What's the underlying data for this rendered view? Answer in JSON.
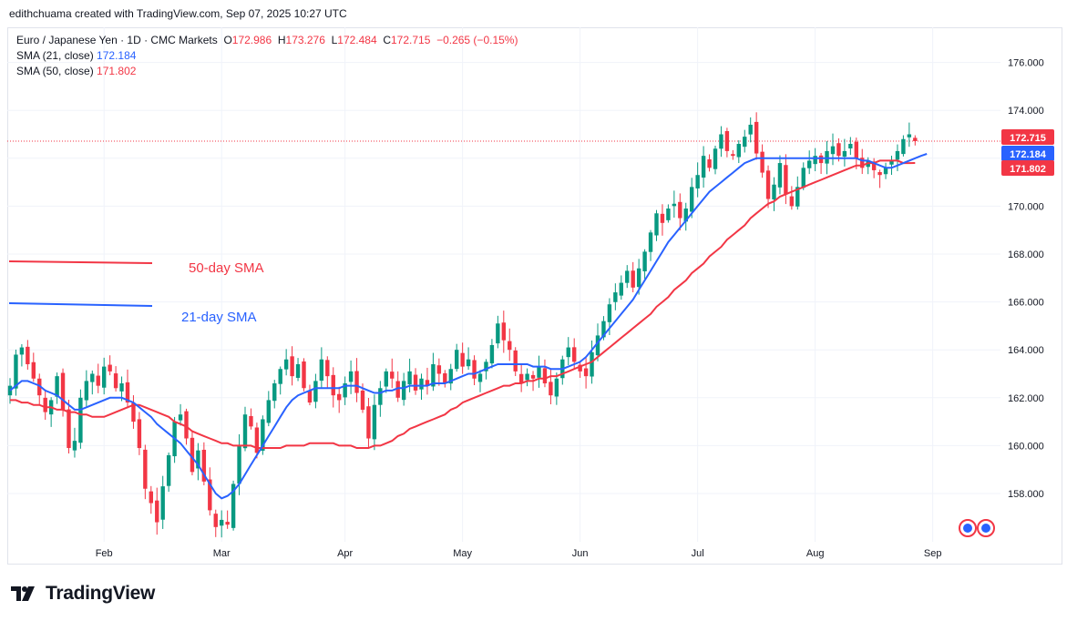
{
  "credit": "edithchuama created with TradingView.com, Sep 07, 2025 10:27 UTC",
  "legend": {
    "symbol": "Euro / Japanese Yen · 1D · CMC Markets",
    "o_label": "O",
    "o": "172.986",
    "h_label": "H",
    "h": "173.276",
    "l_label": "L",
    "l": "172.484",
    "c_label": "C",
    "c": "172.715",
    "change": "−0.265 (−0.15%)",
    "sma21_label": "SMA (21, close)",
    "sma21_value": "172.184",
    "sma50_label": "SMA (50, close)",
    "sma50_value": "171.802"
  },
  "annotations": {
    "sma50": "50-day SMA",
    "sma21": "21-day SMA"
  },
  "brand": {
    "name": "TradingView"
  },
  "colors": {
    "up": "#089981",
    "down": "#f23645",
    "sma21": "#2962ff",
    "sma50": "#f23645",
    "text": "#131722",
    "grid": "#f0f3fa"
  },
  "chart_data": {
    "type": "candlestick",
    "price_ticks": [
      "158.000",
      "160.000",
      "162.000",
      "164.000",
      "166.000",
      "168.000",
      "170.000",
      "172.000",
      "174.000",
      "176.000"
    ],
    "ylim": [
      156,
      177.5
    ],
    "months": [
      {
        "label": "Feb",
        "day": 16
      },
      {
        "label": "Mar",
        "day": 36
      },
      {
        "label": "Apr",
        "day": 57
      },
      {
        "label": "May",
        "day": 77
      },
      {
        "label": "Jun",
        "day": 97
      },
      {
        "label": "Jul",
        "day": 117
      },
      {
        "label": "Aug",
        "day": 137
      },
      {
        "label": "Sep",
        "day": 157
      }
    ],
    "last_price": 172.715,
    "sma21_last": 172.184,
    "sma50_last": 171.802,
    "closes": [
      162.5,
      163.8,
      164.1,
      163.4,
      162.8,
      162.1,
      161.4,
      161.9,
      162.9,
      161.5,
      159.9,
      160.2,
      162.0,
      162.7,
      163.0,
      162.5,
      163.3,
      163.1,
      162.4,
      162.6,
      161.8,
      161.0,
      159.9,
      158.2,
      157.6,
      156.8,
      158.3,
      159.6,
      161.0,
      161.3,
      160.3,
      158.9,
      159.8,
      158.5,
      157.3,
      156.6,
      156.9,
      156.7,
      158.4,
      160.0,
      161.3,
      160.8,
      159.7,
      161.1,
      161.9,
      162.6,
      163.2,
      163.6,
      162.9,
      163.4,
      162.4,
      161.8,
      162.7,
      163.6,
      162.9,
      162.1,
      161.9,
      162.6,
      163.1,
      162.2,
      161.5,
      160.3,
      161.7,
      162.4,
      163.1,
      162.8,
      162.0,
      162.7,
      163.1,
      162.3,
      162.8,
      162.5,
      163.4,
      163.0,
      162.6,
      163.2,
      164.0,
      163.3,
      163.6,
      162.8,
      163.0,
      163.5,
      164.2,
      165.1,
      164.4,
      164.0,
      163.1,
      162.6,
      163.0,
      162.8,
      163.3,
      162.6,
      162.1,
      162.8,
      163.6,
      164.1,
      163.5,
      163.1,
      162.9,
      163.9,
      164.6,
      165.2,
      165.9,
      166.4,
      166.8,
      167.3,
      166.6,
      167.4,
      168.1,
      168.9,
      169.7,
      169.3,
      169.9,
      170.1,
      169.5,
      169.9,
      170.8,
      171.3,
      172.1,
      171.6,
      172.4,
      173.0,
      172.3,
      172.1,
      172.6,
      172.9,
      173.4,
      172.2,
      171.4,
      170.3,
      170.9,
      171.8,
      170.5,
      170.0,
      170.8,
      171.6,
      171.9,
      172.1,
      171.8,
      172.3,
      172.5,
      172.1,
      172.3,
      172.6,
      172.0,
      171.6,
      171.9,
      171.5,
      171.3,
      171.6,
      171.9,
      172.3,
      172.8,
      173.0,
      172.715
    ],
    "sma21": [
      162.3,
      162.5,
      162.7,
      162.7,
      162.6,
      162.5,
      162.3,
      162.2,
      162.1,
      161.9,
      161.7,
      161.5,
      161.5,
      161.6,
      161.7,
      161.8,
      161.9,
      162.0,
      162.0,
      162.0,
      161.9,
      161.8,
      161.6,
      161.4,
      161.2,
      160.9,
      160.7,
      160.5,
      160.3,
      160.1,
      159.8,
      159.5,
      159.2,
      158.8,
      158.4,
      158.0,
      157.8,
      157.9,
      158.1,
      158.4,
      158.8,
      159.2,
      159.6,
      160.0,
      160.4,
      160.8,
      161.2,
      161.6,
      161.9,
      162.1,
      162.2,
      162.3,
      162.4,
      162.4,
      162.4,
      162.4,
      162.4,
      162.5,
      162.5,
      162.5,
      162.4,
      162.3,
      162.2,
      162.2,
      162.3,
      162.3,
      162.4,
      162.4,
      162.5,
      162.5,
      162.5,
      162.5,
      162.6,
      162.6,
      162.6,
      162.7,
      162.8,
      162.9,
      163.0,
      163.0,
      163.1,
      163.2,
      163.3,
      163.4,
      163.4,
      163.4,
      163.4,
      163.4,
      163.4,
      163.3,
      163.3,
      163.3,
      163.2,
      163.2,
      163.2,
      163.3,
      163.4,
      163.5,
      163.7,
      164.0,
      164.3,
      164.6,
      164.9,
      165.2,
      165.5,
      165.8,
      166.1,
      166.5,
      166.9,
      167.3,
      167.7,
      168.1,
      168.5,
      168.8,
      169.1,
      169.4,
      169.7,
      170.0,
      170.3,
      170.6,
      170.8,
      171.0,
      171.2,
      171.4,
      171.6,
      171.8,
      171.9,
      172.0,
      172.0,
      172.0,
      172.0,
      172.0,
      172.0,
      172.0,
      172.0,
      172.0,
      172.0,
      172.0,
      172.0,
      172.0,
      172.0,
      172.0,
      172.0,
      172.0,
      172.0,
      171.9,
      171.9,
      171.8,
      171.7,
      171.6,
      171.6,
      171.7,
      171.8,
      171.9,
      172.0,
      172.1,
      172.184
    ],
    "sma50": [
      161.9,
      161.9,
      161.8,
      161.8,
      161.7,
      161.7,
      161.6,
      161.6,
      161.5,
      161.5,
      161.4,
      161.4,
      161.3,
      161.3,
      161.2,
      161.2,
      161.2,
      161.3,
      161.4,
      161.5,
      161.6,
      161.7,
      161.7,
      161.6,
      161.5,
      161.4,
      161.3,
      161.2,
      161.0,
      160.9,
      160.8,
      160.6,
      160.5,
      160.4,
      160.3,
      160.2,
      160.1,
      160.1,
      160.0,
      160.0,
      160.0,
      160.0,
      159.9,
      159.9,
      159.9,
      159.9,
      159.9,
      160.0,
      160.0,
      160.0,
      160.0,
      160.1,
      160.1,
      160.1,
      160.1,
      160.1,
      160.0,
      160.0,
      160.0,
      159.9,
      159.9,
      159.9,
      160.0,
      160.0,
      160.1,
      160.2,
      160.4,
      160.5,
      160.7,
      160.8,
      160.9,
      161.0,
      161.1,
      161.2,
      161.3,
      161.5,
      161.6,
      161.8,
      161.9,
      162.0,
      162.1,
      162.2,
      162.3,
      162.4,
      162.5,
      162.5,
      162.6,
      162.6,
      162.7,
      162.7,
      162.8,
      162.8,
      162.9,
      162.9,
      163.0,
      163.1,
      163.2,
      163.3,
      163.4,
      163.5,
      163.7,
      163.9,
      164.1,
      164.3,
      164.5,
      164.7,
      164.9,
      165.1,
      165.3,
      165.5,
      165.8,
      166.0,
      166.2,
      166.5,
      166.7,
      166.9,
      167.2,
      167.4,
      167.6,
      167.9,
      168.1,
      168.3,
      168.6,
      168.8,
      169.0,
      169.2,
      169.5,
      169.7,
      169.9,
      170.1,
      170.2,
      170.4,
      170.5,
      170.6,
      170.7,
      170.8,
      170.9,
      171.0,
      171.1,
      171.2,
      171.3,
      171.4,
      171.5,
      171.6,
      171.7,
      171.7,
      171.8,
      171.8,
      171.9,
      171.9,
      171.9,
      171.9,
      171.8,
      171.8,
      171.802
    ]
  }
}
